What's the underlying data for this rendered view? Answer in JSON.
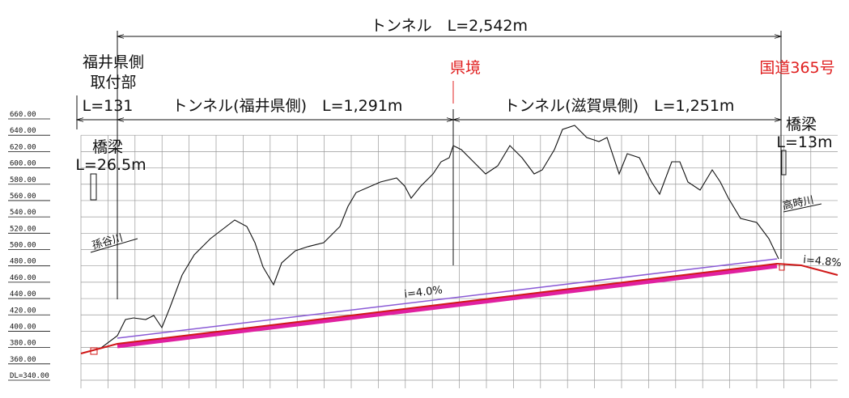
{
  "title": "トンネル　L=2,542m",
  "left_section": {
    "line1": "福井県側",
    "line2": "取付部",
    "length": "L=131"
  },
  "tunnel_fukui": "トンネル(福井県側)　L=1,291m",
  "border": "県境",
  "tunnel_shiga": "トンネル(滋賀県側)　L=1,251m",
  "route": "国道365号",
  "bridge_left": {
    "label": "橋梁",
    "length": "L=26.5m"
  },
  "bridge_right": {
    "label": "橋梁",
    "length": "L=13m"
  },
  "river_left": "孫谷川",
  "river_right": "高時川",
  "grade_main": "i=4.0%",
  "grade_right": "i=4.8%",
  "elevation_ticks": [
    "660.00",
    "640.00",
    "620.00",
    "600.00",
    "580.00",
    "560.00",
    "540.00",
    "520.00",
    "500.00",
    "480.00",
    "460.00",
    "440.00",
    "420.00",
    "400.00",
    "380.00",
    "360.00",
    "DL=340.00"
  ]
}
